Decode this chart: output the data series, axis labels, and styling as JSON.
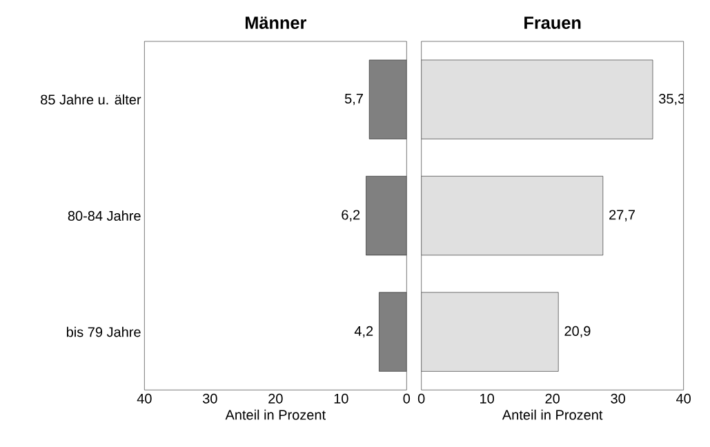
{
  "chart_data": [
    {
      "type": "bar",
      "title": "Männer",
      "orientation": "horizontal",
      "xlabel": "Anteil in Prozent",
      "categories": [
        "85 Jahre u. älter",
        "80-84 Jahre",
        "bis 79 Jahre"
      ],
      "values": [
        5.7,
        6.2,
        4.2
      ],
      "value_labels": [
        "5,7",
        "6,2",
        "4,2"
      ],
      "color": "#808080",
      "xlim": [
        40,
        0
      ],
      "xticks": [
        40,
        30,
        20,
        10,
        0
      ],
      "grid": false
    },
    {
      "type": "bar",
      "title": "Frauen",
      "orientation": "horizontal",
      "xlabel": "Anteil in Prozent",
      "categories": [
        null,
        null,
        null
      ],
      "values": [
        35.3,
        27.7,
        20.9
      ],
      "value_labels": [
        "35,3",
        "27,7",
        "20,9"
      ],
      "color": "#e0e0e0",
      "xlim": [
        0,
        40
      ],
      "xticks": [
        0,
        10,
        20,
        30,
        40
      ],
      "tick_labels": "x",
      "grid": false
    }
  ]
}
